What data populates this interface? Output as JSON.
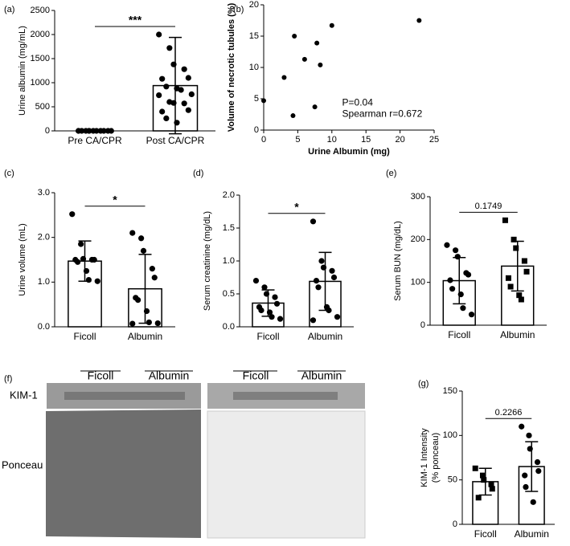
{
  "chart_data": [
    {
      "type": "bar",
      "panel": "(a)",
      "ylabel": [
        "Urine albumin (mg/mL)"
      ],
      "categories": [
        "Pre CA/CPR",
        "Post CA/CPR"
      ],
      "values": [
        0,
        940
      ],
      "errors": [
        0,
        1000
      ],
      "markers": [
        "circle",
        "circle"
      ],
      "points": [
        [
          0,
          0,
          0,
          0,
          0,
          0,
          0,
          0,
          0,
          0,
          0,
          0
        ],
        [
          2000,
          1720,
          1380,
          1280,
          1100,
          1080,
          920,
          880,
          850,
          760,
          740,
          600,
          580,
          570,
          430,
          400,
          260,
          170
        ]
      ],
      "ylim": [
        0,
        2500
      ],
      "yticks": [
        0,
        500,
        1000,
        1500,
        2000,
        2500
      ],
      "annotation": "***",
      "color": "#ffffff"
    },
    {
      "type": "scatter",
      "panel": "(b)",
      "ylabel": [
        "Volume of necrotic tubules (%)"
      ],
      "xlabel": "Urine Albumin (mg)",
      "x": [
        0,
        3,
        4.3,
        4.5,
        6,
        7.5,
        7.8,
        8.3,
        10,
        22.8
      ],
      "values": [
        4.7,
        8.4,
        2.3,
        15,
        11.3,
        3.7,
        13.9,
        10.4,
        16.7,
        17.5
      ],
      "xlim": [
        0,
        25
      ],
      "xticks": [
        0,
        5,
        10,
        15,
        20,
        25
      ],
      "ylim": [
        0,
        20
      ],
      "yticks": [
        0,
        5,
        10,
        15,
        20
      ],
      "annotations": [
        "P=0.04",
        "Spearman r=0.672"
      ],
      "color": "#000000"
    },
    {
      "type": "bar",
      "panel": "(c)",
      "ylabel": [
        "Urine volume (mL)"
      ],
      "categories": [
        "Ficoll",
        "Albumin"
      ],
      "values": [
        1.47,
        0.85
      ],
      "errors": [
        0.45,
        0.77
      ],
      "markers": [
        "circle",
        "circle"
      ],
      "points": [
        [
          2.52,
          1.85,
          1.52,
          1.5,
          1.5,
          1.5,
          1.45,
          1.25,
          1.05,
          1.02
        ],
        [
          2.1,
          1.98,
          1.7,
          1.3,
          1.1,
          0.65,
          0.6,
          0.35,
          0.1,
          0.08,
          0.07
        ]
      ],
      "ylim": [
        0,
        3
      ],
      "yticks": [
        {
          "value": 0,
          "label": "0.0"
        },
        {
          "value": 1,
          "label": "1.0"
        },
        {
          "value": 2,
          "label": "2.0"
        },
        {
          "value": 3,
          "label": "3.0"
        }
      ],
      "annotation": "*",
      "color": "#ffffff"
    },
    {
      "type": "bar",
      "panel": "(d)",
      "ylabel": [
        "Serum creatinine (mg/dL)"
      ],
      "categories": [
        "Ficoll",
        "Albumin"
      ],
      "values": [
        0.36,
        0.69
      ],
      "errors": [
        0.2,
        0.44
      ],
      "markers": [
        "circle",
        "circle"
      ],
      "points": [
        [
          0.7,
          0.6,
          0.5,
          0.45,
          0.35,
          0.3,
          0.25,
          0.22,
          0.15,
          0.12
        ],
        [
          1.6,
          1.0,
          0.9,
          0.85,
          0.75,
          0.7,
          0.6,
          0.3,
          0.25,
          0.15,
          0.1
        ]
      ],
      "ylim": [
        0,
        2
      ],
      "yticks": [
        {
          "value": 0,
          "label": "0.0"
        },
        0.5,
        {
          "value": 1,
          "label": "1.0"
        },
        1.5,
        {
          "value": 2,
          "label": "2.0"
        }
      ],
      "annotation": "*",
      "color": "#ffffff"
    },
    {
      "type": "bar",
      "panel": "(e)",
      "ylabel": [
        "Serum BUN (mg/dL)"
      ],
      "categories": [
        "Ficoll",
        "Albumin"
      ],
      "values": [
        104,
        138
      ],
      "errors": [
        54,
        58
      ],
      "markers": [
        "circle",
        "square"
      ],
      "points": [
        [
          187,
          175,
          160,
          122,
          118,
          105,
          85,
          72,
          40,
          25
        ],
        [
          245,
          200,
          180,
          150,
          125,
          110,
          90,
          70,
          60
        ]
      ],
      "ylim": [
        0,
        300
      ],
      "yticks": [
        0,
        100,
        200,
        300
      ],
      "annotation": "0.1749",
      "color": "#ffffff"
    },
    {
      "type": "bar",
      "panel": "(g)",
      "ylabel": [
        "KIM-1 Intensity",
        "(% ponceau)"
      ],
      "categories": [
        "Ficoll",
        "Albumin"
      ],
      "values": [
        48,
        65
      ],
      "errors": [
        15,
        28
      ],
      "markers": [
        "square",
        "circle"
      ],
      "points": [
        [
          63,
          55,
          50,
          45,
          40,
          30
        ],
        [
          110,
          100,
          85,
          70,
          60,
          55,
          42,
          25
        ]
      ],
      "ylim": [
        0,
        150
      ],
      "yticks": [
        0,
        50,
        100,
        150
      ],
      "annotation": "0.2266",
      "color": "#ffffff"
    }
  ],
  "blot": {
    "panel": "(f)",
    "row_labels": [
      "KIM-1",
      "Ponceau"
    ],
    "lane_groups": [
      "Ficoll",
      "Albumin",
      "Ficoll",
      "Albumin"
    ]
  }
}
